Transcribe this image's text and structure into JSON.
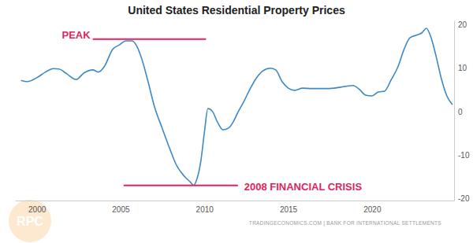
{
  "chart_data": {
    "type": "line",
    "title": "United States Residential Property Prices",
    "source": "TRADINGECONOMICS.COM | BANK FOR INTERNATIONAL SETTLEMENTS",
    "logo": "RPC",
    "color": "#3d88c6",
    "x": [
      1999.06,
      1999.44,
      2000.0,
      2000.52,
      2000.99,
      2001.32,
      2001.79,
      2002.35,
      2002.82,
      2003.34,
      2003.67,
      2004.05,
      2004.52,
      2004.94,
      2005.32,
      2005.69,
      2005.98,
      2006.26,
      2006.64,
      2007.01,
      2007.48,
      2007.95,
      2008.33,
      2008.8,
      2009.18,
      2009.36,
      2009.55,
      2009.79,
      2010.02,
      2010.21,
      2010.49,
      2010.78,
      2011.11,
      2011.44,
      2011.72,
      2012.0,
      2012.38,
      2012.75,
      2013.08,
      2013.46,
      2013.93,
      2014.26,
      2014.64,
      2015.01,
      2015.39,
      2015.86,
      2016.42,
      2017.08,
      2017.74,
      2018.4,
      2018.87,
      2019.25,
      2019.62,
      2020.0,
      2020.38,
      2020.75,
      2021.13,
      2021.55,
      2021.93,
      2022.26,
      2022.64,
      2022.96,
      2023.25,
      2023.53,
      2023.81,
      2024.14,
      2024.47,
      2024.8
    ],
    "values": [
      7.2,
      6.9,
      7.8,
      9.1,
      9.9,
      9.8,
      8.7,
      7.4,
      8.9,
      9.6,
      9.1,
      10.5,
      14.3,
      15.4,
      16.3,
      16.3,
      15.0,
      12.2,
      6.9,
      1.3,
      -3.8,
      -8.7,
      -12.3,
      -14.9,
      -16.3,
      -17.0,
      -15.6,
      -11.4,
      -4.2,
      0.7,
      0.0,
      -2.4,
      -4.2,
      -3.8,
      -2.4,
      -0.2,
      2.5,
      5.4,
      7.6,
      9.3,
      10.0,
      9.6,
      6.9,
      5.4,
      4.9,
      5.4,
      5.3,
      5.3,
      5.4,
      5.8,
      6.0,
      5.1,
      3.8,
      3.6,
      4.5,
      4.7,
      7.2,
      10.3,
      14.5,
      17.0,
      17.6,
      18.1,
      19.2,
      17.0,
      13.0,
      7.6,
      3.6,
      1.6
    ],
    "xlim": [
      1998.7,
      2024.9
    ],
    "xticks": [
      2000,
      2005,
      2010,
      2015,
      2020
    ],
    "ylim": [
      -20.5,
      21
    ],
    "yticks": [
      -20,
      -10,
      0,
      10,
      20
    ],
    "grid": false,
    "annotations": [
      {
        "text": "PEAK",
        "x": [
          2003.34,
          2010.1
        ],
        "y": 16.7,
        "color": "#e0245e"
      },
      {
        "text": "2008 FINANCIAL CRISIS",
        "x": [
          2005.18,
          2012.0
        ],
        "y": -17.0,
        "color": "#e0245e"
      }
    ]
  }
}
